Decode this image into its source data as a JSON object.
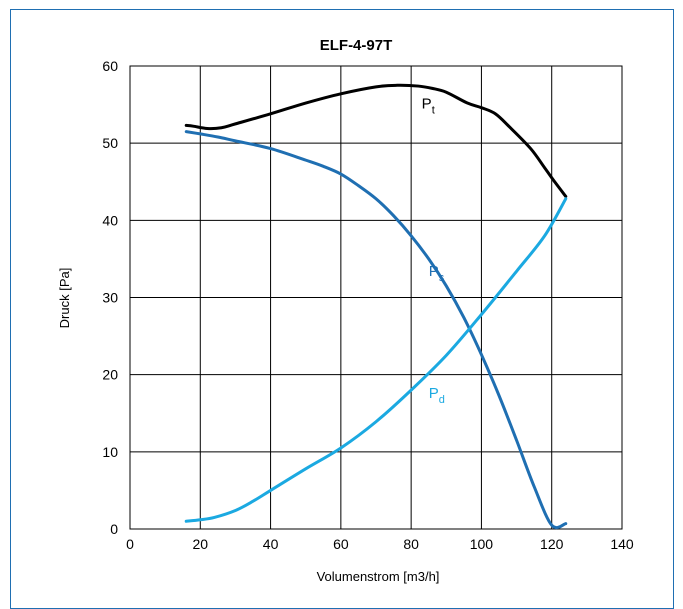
{
  "chart_data": {
    "type": "line",
    "title": "ELF-4-97T",
    "xlabel": "Volumenstrom [m3/h]",
    "ylabel": "Druck [Pa]",
    "xlim": [
      0,
      140
    ],
    "ylim": [
      0,
      60
    ],
    "xticks": [
      "0",
      "20",
      "40",
      "60",
      "80",
      "100",
      "120",
      "140"
    ],
    "yticks": [
      "0",
      "10",
      "20",
      "30",
      "40",
      "50",
      "60"
    ],
    "grid": true,
    "series": [
      {
        "name": "Pt",
        "label_main": "P",
        "label_sub": "t",
        "color": "#000000",
        "x": [
          16,
          18,
          22,
          26,
          30,
          40,
          50,
          60,
          70,
          76,
          82,
          86,
          90,
          96,
          100,
          104,
          108,
          114,
          118,
          121,
          124
        ],
        "y": [
          52.3,
          52.2,
          51.9,
          52.0,
          52.5,
          53.8,
          55.2,
          56.4,
          57.3,
          57.5,
          57.4,
          57.1,
          56.6,
          55.2,
          54.6,
          53.8,
          52.1,
          49.3,
          46.8,
          44.9,
          43.1
        ]
      },
      {
        "name": "Ps",
        "label_main": "P",
        "label_sub": "s",
        "color": "#1f6fb2",
        "x": [
          16,
          20,
          25,
          30,
          40,
          50,
          55,
          60,
          65,
          70,
          75,
          80,
          85,
          90,
          95,
          100,
          105,
          110,
          115,
          120,
          124
        ],
        "y": [
          51.5,
          51.2,
          50.8,
          50.3,
          49.3,
          47.8,
          47.0,
          46.0,
          44.5,
          42.8,
          40.6,
          38.0,
          35.0,
          31.5,
          27.4,
          22.6,
          17.3,
          11.5,
          5.5,
          0.5,
          0.7
        ]
      },
      {
        "name": "Pd",
        "label_main": "P",
        "label_sub": "d",
        "color": "#1ba9e1",
        "x": [
          16,
          20,
          24,
          30,
          35,
          40,
          50,
          60,
          70,
          80,
          90,
          100,
          110,
          118,
          124
        ],
        "y": [
          1.0,
          1.2,
          1.5,
          2.4,
          3.6,
          5.0,
          7.8,
          10.5,
          13.9,
          18.0,
          22.5,
          27.8,
          33.4,
          38.0,
          42.8
        ]
      }
    ],
    "annotations": [
      {
        "series": "Pt",
        "x": 83,
        "y": 54.5
      },
      {
        "series": "Ps",
        "x": 85,
        "y": 32.8
      },
      {
        "series": "Pd",
        "x": 85,
        "y": 17.0
      }
    ]
  }
}
